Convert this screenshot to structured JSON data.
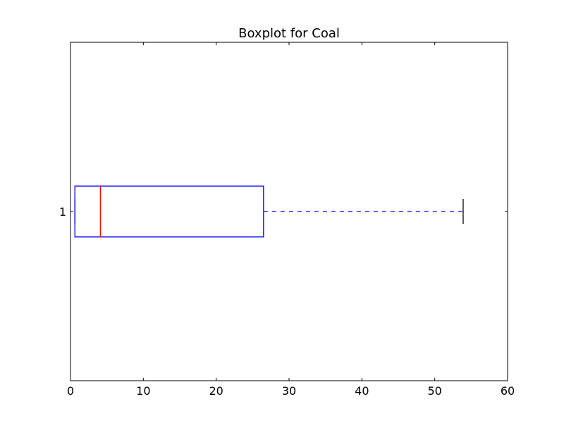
{
  "chart_data": {
    "type": "boxplot",
    "title": "Boxplot for Coal",
    "orientation": "horizontal",
    "xlim": [
      0,
      60
    ],
    "x_ticks": [
      "0",
      "10",
      "20",
      "30",
      "40",
      "50",
      "60"
    ],
    "y_ticks": [
      "1"
    ],
    "xlabel": "",
    "ylabel": "",
    "grid": false,
    "series": [
      {
        "position": 1,
        "whisker_low": 0.6,
        "q1": 0.6,
        "median": 4.1,
        "q3": 26.5,
        "whisker_high": 53.9
      }
    ],
    "colors": {
      "box": "#0000ff",
      "median": "#ff0000",
      "whisker": "#0000ff",
      "cap": "#000000",
      "axes": "#000000"
    }
  }
}
